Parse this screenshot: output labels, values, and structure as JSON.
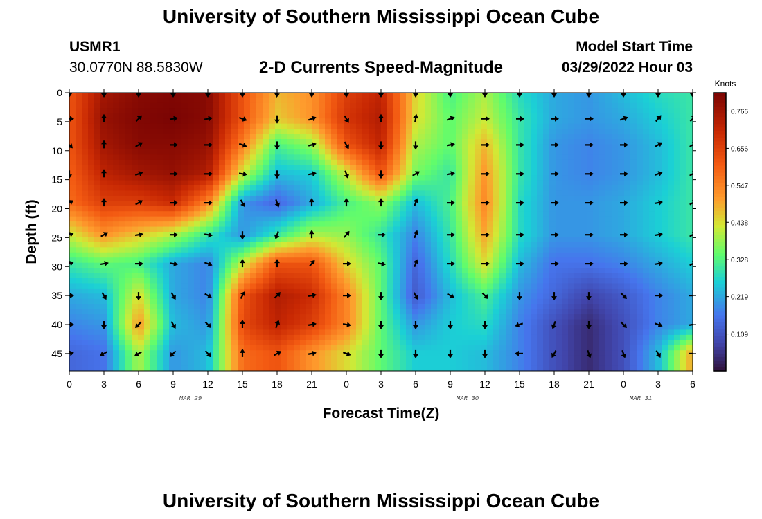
{
  "header": {
    "title": "University of Southern Mississippi Ocean Cube",
    "station_id": "USMR1",
    "coords": "30.0770N  88.5830W",
    "chart_title": "2-D Currents Speed-Magnitude",
    "model_start_label": "Model Start Time",
    "model_start_value": "03/29/2022 Hour 03"
  },
  "footer": {
    "title": "University of Southern Mississippi Ocean Cube"
  },
  "chart_data": {
    "type": "heatmap",
    "title": "2-D Currents Speed-Magnitude",
    "xlabel": "Forecast Time(Z)",
    "ylabel": "Depth (ft)",
    "x_tick_labels": [
      "0",
      "3",
      "6",
      "9",
      "12",
      "15",
      "18",
      "21",
      "0",
      "3",
      "6",
      "9",
      "12",
      "15",
      "18",
      "21",
      "0",
      "3",
      "6"
    ],
    "date_labels": [
      {
        "label": "MAR 29",
        "tick_index": 4
      },
      {
        "label": "MAR 30",
        "tick_index": 12
      },
      {
        "label": "MAR 31",
        "tick_index": 17
      }
    ],
    "y_tick_labels": [
      "0",
      "5",
      "10",
      "15",
      "20",
      "25",
      "30",
      "35",
      "40",
      "45"
    ],
    "y_ticks": [
      0,
      5,
      10,
      15,
      20,
      25,
      30,
      35,
      40,
      45
    ],
    "ylim": [
      0,
      48
    ],
    "colorbar": {
      "unit": "Knots",
      "ticks": [
        "0.766",
        "0.656",
        "0.547",
        "0.438",
        "0.328",
        "0.219",
        "0.109"
      ],
      "tick_values": [
        0.766,
        0.656,
        0.547,
        0.438,
        0.328,
        0.219,
        0.109
      ],
      "range": [
        0.0,
        0.82
      ]
    },
    "arrow_depths": [
      0,
      4.5,
      9,
      14,
      19,
      24.5,
      29.5,
      35,
      40,
      45
    ],
    "speed_grid": [
      [
        0.62,
        0.76,
        0.8,
        0.81,
        0.8,
        0.62,
        0.48,
        0.52,
        0.66,
        0.72,
        0.45,
        0.32,
        0.4,
        0.28,
        0.22,
        0.2,
        0.24,
        0.28,
        0.3
      ],
      [
        0.62,
        0.78,
        0.81,
        0.82,
        0.8,
        0.62,
        0.46,
        0.52,
        0.68,
        0.74,
        0.44,
        0.34,
        0.42,
        0.3,
        0.22,
        0.2,
        0.22,
        0.26,
        0.3
      ],
      [
        0.62,
        0.76,
        0.8,
        0.8,
        0.78,
        0.55,
        0.32,
        0.38,
        0.62,
        0.72,
        0.4,
        0.34,
        0.48,
        0.3,
        0.2,
        0.18,
        0.2,
        0.24,
        0.3
      ],
      [
        0.6,
        0.72,
        0.76,
        0.78,
        0.74,
        0.42,
        0.24,
        0.26,
        0.42,
        0.62,
        0.36,
        0.3,
        0.52,
        0.3,
        0.2,
        0.18,
        0.2,
        0.24,
        0.3
      ],
      [
        0.58,
        0.66,
        0.66,
        0.7,
        0.54,
        0.2,
        0.14,
        0.22,
        0.32,
        0.38,
        0.24,
        0.32,
        0.54,
        0.28,
        0.2,
        0.2,
        0.22,
        0.26,
        0.3
      ],
      [
        0.42,
        0.52,
        0.46,
        0.4,
        0.3,
        0.2,
        0.3,
        0.4,
        0.38,
        0.3,
        0.18,
        0.3,
        0.5,
        0.28,
        0.2,
        0.2,
        0.22,
        0.26,
        0.3
      ],
      [
        0.3,
        0.34,
        0.32,
        0.22,
        0.18,
        0.42,
        0.62,
        0.62,
        0.45,
        0.34,
        0.14,
        0.28,
        0.44,
        0.24,
        0.16,
        0.16,
        0.18,
        0.22,
        0.26
      ],
      [
        0.22,
        0.24,
        0.44,
        0.22,
        0.18,
        0.62,
        0.74,
        0.7,
        0.54,
        0.34,
        0.12,
        0.24,
        0.32,
        0.2,
        0.14,
        0.08,
        0.12,
        0.18,
        0.22
      ],
      [
        0.18,
        0.2,
        0.52,
        0.24,
        0.2,
        0.64,
        0.72,
        0.66,
        0.54,
        0.34,
        0.2,
        0.26,
        0.28,
        0.18,
        0.1,
        0.04,
        0.1,
        0.18,
        0.22
      ],
      [
        0.14,
        0.16,
        0.4,
        0.2,
        0.24,
        0.58,
        0.62,
        0.52,
        0.44,
        0.34,
        0.26,
        0.26,
        0.24,
        0.18,
        0.1,
        0.04,
        0.1,
        0.24,
        0.5
      ]
    ],
    "direction_deg": [
      [
        180,
        180,
        180,
        180,
        180,
        180,
        185,
        180,
        180,
        180,
        180,
        180,
        180,
        180,
        180,
        180,
        180,
        180,
        180
      ],
      [
        90,
        0,
        45,
        80,
        80,
        110,
        180,
        70,
        150,
        0,
        10,
        70,
        90,
        90,
        90,
        90,
        70,
        40,
        45
      ],
      [
        135,
        0,
        60,
        90,
        90,
        110,
        180,
        75,
        150,
        180,
        180,
        80,
        90,
        90,
        90,
        90,
        90,
        60,
        60
      ],
      [
        180,
        0,
        70,
        90,
        90,
        100,
        180,
        80,
        160,
        180,
        60,
        80,
        90,
        90,
        90,
        90,
        90,
        70,
        60
      ],
      [
        60,
        0,
        60,
        90,
        90,
        150,
        160,
        0,
        0,
        0,
        20,
        90,
        90,
        90,
        90,
        90,
        90,
        80,
        60
      ],
      [
        70,
        60,
        80,
        90,
        100,
        180,
        200,
        0,
        40,
        90,
        20,
        90,
        90,
        90,
        90,
        90,
        90,
        80,
        60
      ],
      [
        70,
        80,
        90,
        100,
        110,
        0,
        0,
        40,
        90,
        100,
        20,
        90,
        90,
        90,
        90,
        90,
        90,
        80,
        60
      ],
      [
        90,
        150,
        180,
        150,
        120,
        30,
        45,
        80,
        90,
        180,
        150,
        120,
        135,
        180,
        180,
        180,
        135,
        90,
        90
      ],
      [
        90,
        180,
        225,
        150,
        135,
        0,
        20,
        80,
        100,
        180,
        180,
        180,
        180,
        250,
        200,
        180,
        135,
        110,
        80
      ],
      [
        80,
        240,
        240,
        225,
        140,
        0,
        60,
        80,
        110,
        180,
        180,
        180,
        180,
        270,
        210,
        160,
        160,
        150,
        90
      ]
    ]
  }
}
